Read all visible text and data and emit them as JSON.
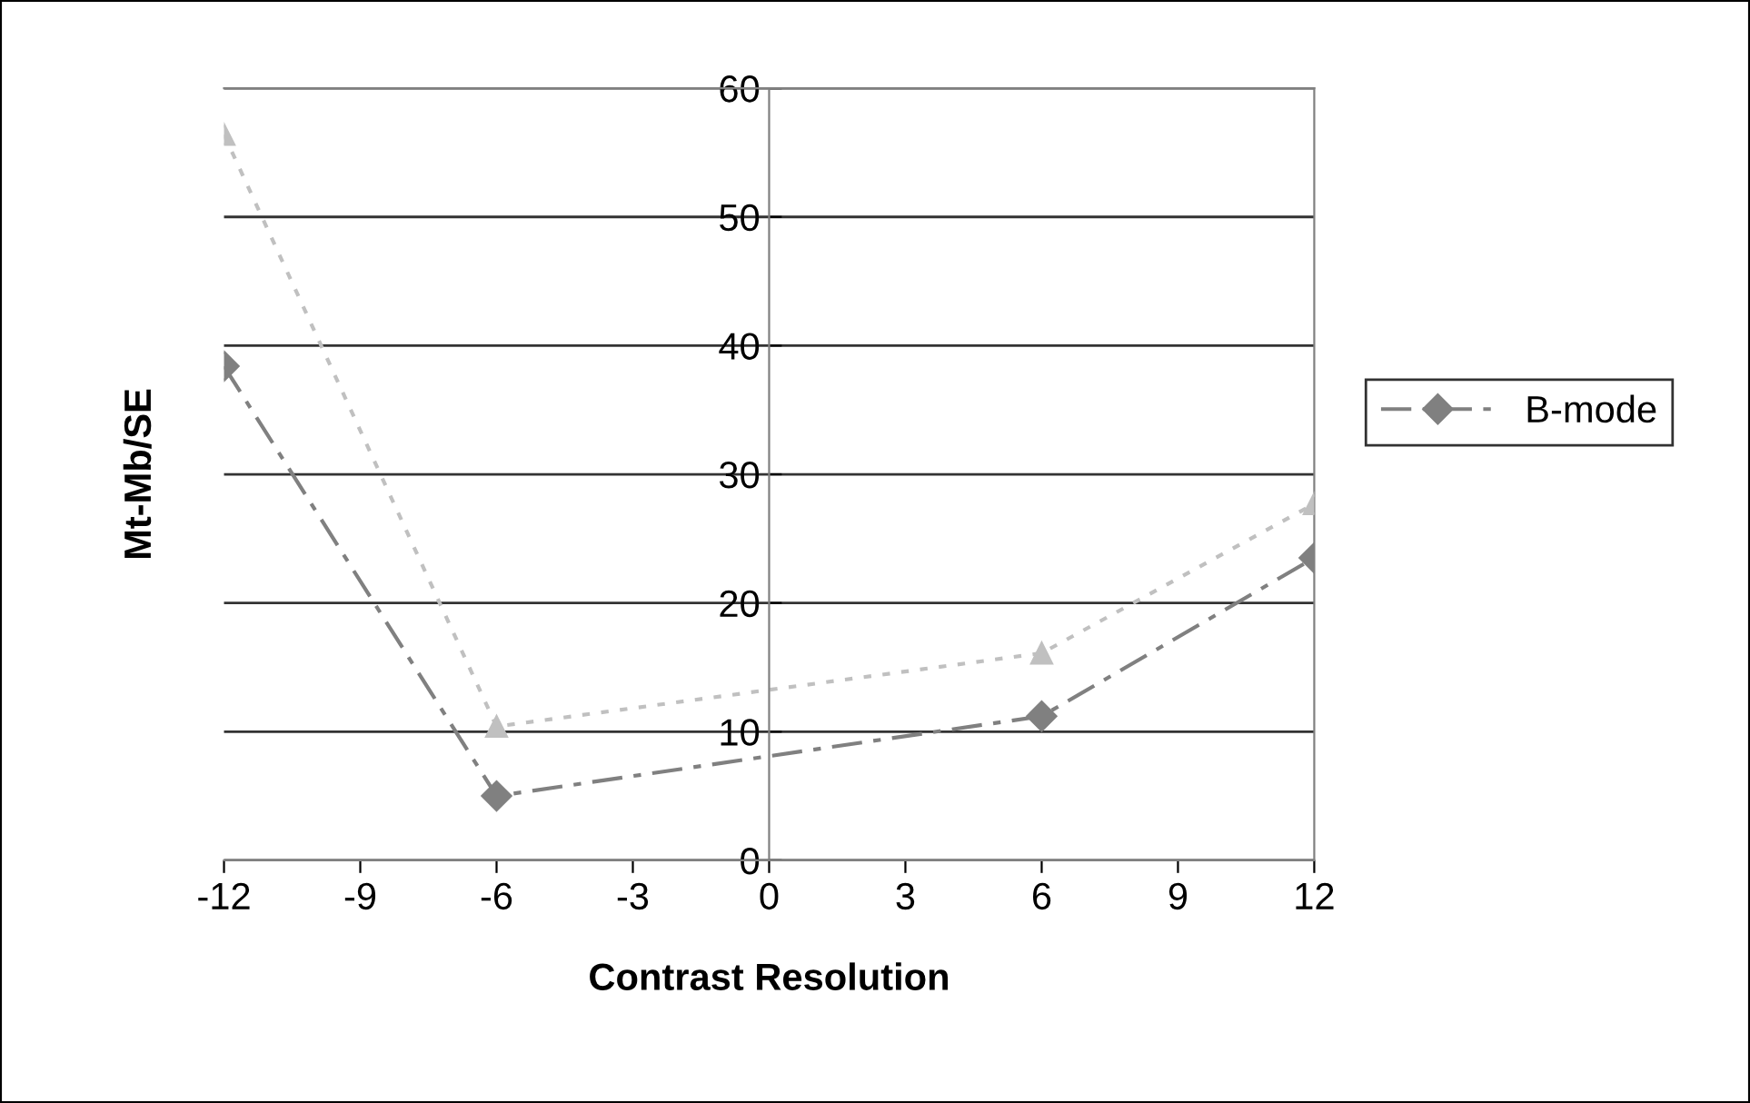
{
  "chart_data": {
    "type": "line",
    "xlabel": "Contrast Resolution",
    "ylabel": "Mt-Mb/SE",
    "x": [
      -12,
      -6,
      6,
      12
    ],
    "series": [
      {
        "name": "B-mode",
        "color": "#808080",
        "values": [
          38.4,
          5.0,
          11.2,
          23.5
        ],
        "marker": "diamond",
        "line_style": "dashed"
      },
      {
        "color": "#c0c0c0",
        "values": [
          56.4,
          10.4,
          16.1,
          27.7
        ],
        "marker": "triangle",
        "line_style": "dotted"
      }
    ],
    "xlim": [
      -12,
      12
    ],
    "xticks": [
      -12,
      -9,
      -6,
      -3,
      0,
      3,
      6,
      9,
      12
    ],
    "ylim": [
      0,
      60
    ],
    "yticks": [
      0,
      10,
      20,
      30,
      40,
      50,
      60
    ],
    "grid": "y",
    "legend": "right"
  }
}
